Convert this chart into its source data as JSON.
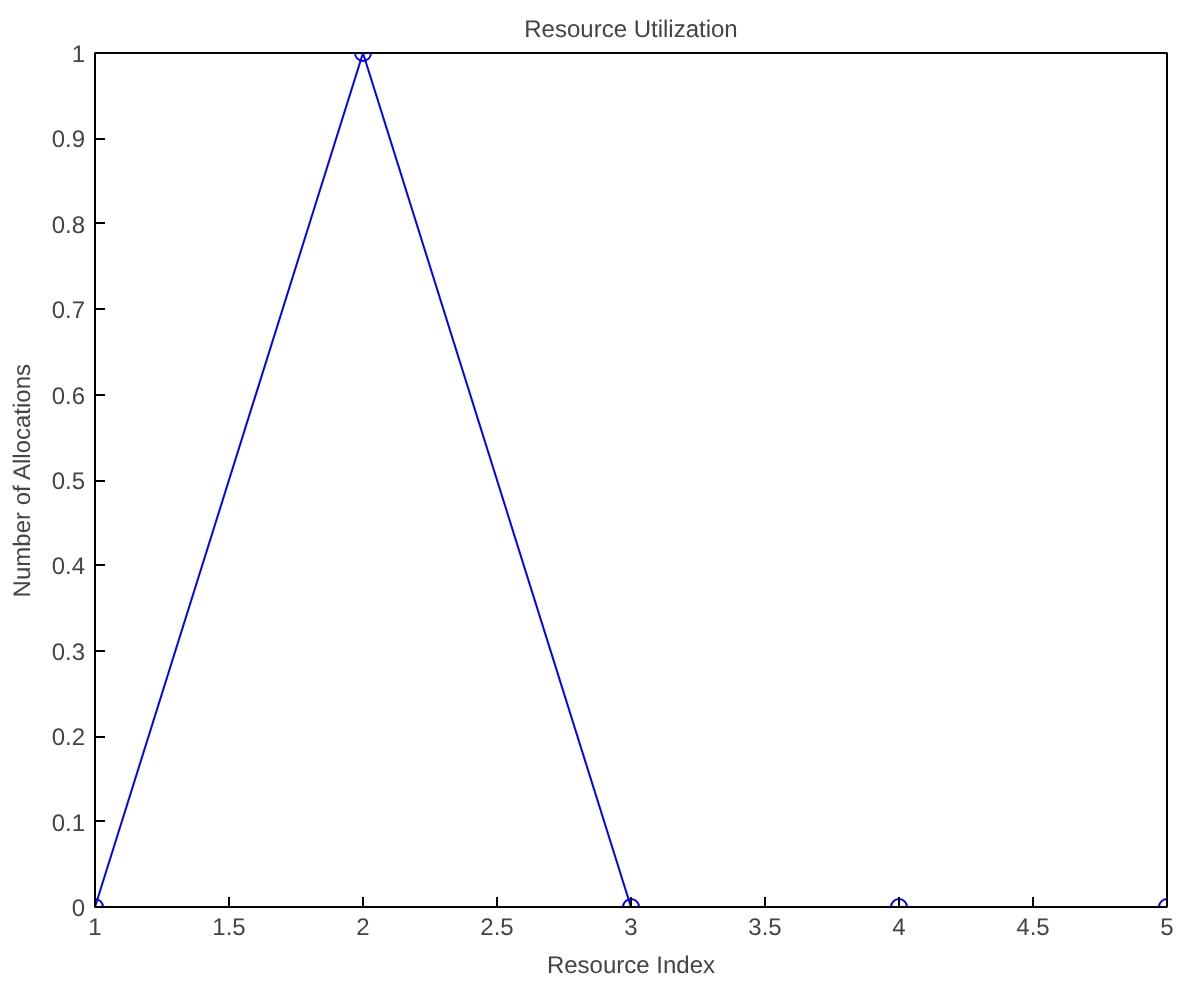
{
  "chart_data": {
    "type": "line",
    "title": "Resource Utilization",
    "xlabel": "Resource Index",
    "ylabel": "Number of Allocations",
    "x": [
      1,
      2,
      3,
      4,
      5
    ],
    "series": [
      {
        "color": "#0000ff",
        "values": [
          0,
          1,
          0,
          0,
          0
        ]
      }
    ],
    "xlim": [
      1,
      5
    ],
    "ylim": [
      0,
      1
    ],
    "xticks": [
      1,
      1.5,
      2,
      2.5,
      3,
      3.5,
      4,
      4.5,
      5
    ],
    "yticks": [
      0,
      0.1,
      0.2,
      0.3,
      0.4,
      0.5,
      0.6,
      0.7,
      0.8,
      0.9,
      1
    ],
    "grid": false,
    "marker": "circle",
    "line_style": "solid"
  }
}
